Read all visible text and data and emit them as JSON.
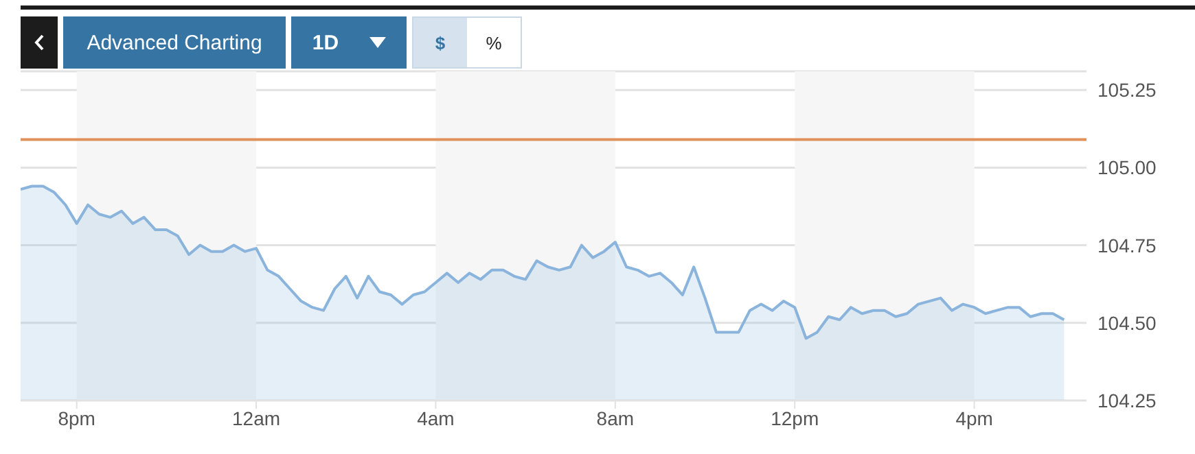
{
  "chart_data": {
    "type": "area",
    "annotations": [
      "Advanced Charting",
      "1D",
      "$",
      "%"
    ],
    "categories": [
      null,
      null,
      null,
      null,
      null,
      "8pm",
      null,
      null,
      null,
      null,
      null,
      null,
      null,
      null,
      null,
      null,
      null,
      null,
      null,
      null,
      null,
      "12am",
      null,
      null,
      null,
      null,
      null,
      null,
      null,
      null,
      null,
      null,
      null,
      null,
      null,
      null,
      null,
      "4am",
      null,
      null,
      null,
      null,
      null,
      null,
      null,
      null,
      null,
      null,
      null,
      null,
      null,
      null,
      null,
      "8am",
      null,
      null,
      null,
      null,
      null,
      null,
      null,
      null,
      null,
      null,
      null,
      null,
      null,
      null,
      null,
      "12pm",
      null,
      null,
      null,
      null,
      null,
      null,
      null,
      null,
      null,
      null,
      null,
      null,
      null,
      null,
      null,
      "4pm",
      null,
      null,
      null,
      null,
      null,
      null,
      null,
      null,
      null,
      null
    ],
    "series": [
      {
        "color": "#8ab4dc",
        "values": [
          104.93,
          104.94,
          104.94,
          104.92,
          104.88,
          104.82,
          104.88,
          104.85,
          104.84,
          104.86,
          104.82,
          104.84,
          104.8,
          104.8,
          104.78,
          104.72,
          104.75,
          104.73,
          104.73,
          104.75,
          104.73,
          104.74,
          104.67,
          104.65,
          104.61,
          104.57,
          104.55,
          104.54,
          104.61,
          104.65,
          104.58,
          104.65,
          104.6,
          104.59,
          104.56,
          104.59,
          104.6,
          104.63,
          104.66,
          104.63,
          104.66,
          104.64,
          104.67,
          104.67,
          104.65,
          104.64,
          104.7,
          104.68,
          104.67,
          104.68,
          104.75,
          104.71,
          104.73,
          104.76,
          104.68,
          104.67,
          104.65,
          104.66,
          104.63,
          104.59,
          104.68,
          104.58,
          104.47,
          104.47,
          104.47,
          104.54,
          104.56,
          104.54,
          104.57,
          104.55,
          104.45,
          104.47,
          104.52,
          104.51,
          104.55,
          104.53,
          104.54,
          104.54,
          104.52,
          104.53,
          104.56,
          104.57,
          104.58,
          104.54,
          104.56,
          104.55,
          104.53,
          104.54,
          104.55,
          104.55,
          104.52,
          104.53,
          104.53,
          104.51,
          null,
          null
        ]
      }
    ],
    "ylim": [
      104.25,
      105.31
    ],
    "yticks": [
      104.25,
      {
        "value": 104.5,
        "label": "104.50"
      },
      104.75,
      {
        "value": 105,
        "label": "105.00"
      },
      105.25
    ],
    "ref_lines": [
      {
        "axis": "y",
        "value": 105.09,
        "color": "#e0905a"
      }
    ],
    "bands": [
      {
        "axis": "x",
        "from": "8pm",
        "to": "12am",
        "color": "#f6f6f6"
      },
      {
        "axis": "x",
        "from": "4am",
        "to": "8am",
        "color": "#f6f6f6"
      },
      {
        "axis": "x",
        "from": "12pm",
        "to": "4pm",
        "color": "#f6f6f6"
      }
    ],
    "grid": "y",
    "legend": false
  }
}
